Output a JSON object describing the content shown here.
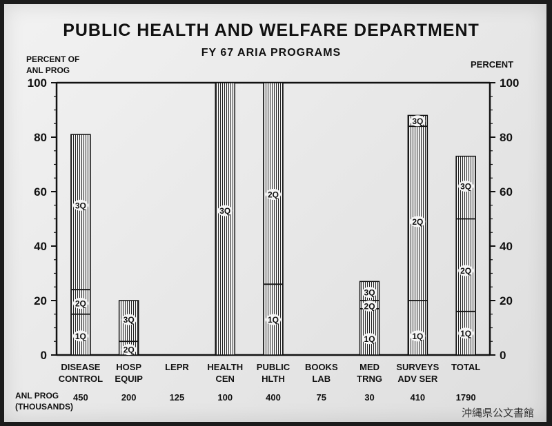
{
  "title": "PUBLIC HEALTH AND WELFARE DEPARTMENT",
  "subtitle": "FY 67 ARIA PROGRAMS",
  "ylabel_left": [
    "PERCENT OF",
    "ANL PROG"
  ],
  "ylabel_right": "PERCENT",
  "footer_label": [
    "ANL PROG",
    "(THOUSANDS)"
  ],
  "archive_mark": "沖縄県公文書館",
  "chart_data": {
    "type": "bar",
    "title": "PUBLIC HEALTH AND WELFARE DEPARTMENT",
    "subtitle": "FY 67 ARIA PROGRAMS",
    "ylim": [
      0,
      100
    ],
    "yticks_left": [
      0,
      20,
      40,
      60,
      80,
      100
    ],
    "yticks_right": [
      0,
      20,
      40,
      60,
      80,
      100
    ],
    "categories": [
      [
        "DISEASE",
        "CONTROL"
      ],
      [
        "HOSP",
        "EQUIP"
      ],
      [
        "LEPR"
      ],
      [
        "HEALTH",
        "CEN"
      ],
      [
        "PUBLIC",
        "HLTH"
      ],
      [
        "BOOKS",
        "LAB"
      ],
      [
        "MED",
        "TRNG"
      ],
      [
        "SURVEYS",
        "ADV SER"
      ],
      [
        "TOTAL"
      ]
    ],
    "anl_prog_thousands": [
      "450",
      "200",
      "125",
      "100",
      "400",
      "75",
      "30",
      "410",
      "1790"
    ],
    "bars": [
      {
        "total": 81,
        "dividers": [
          15,
          24
        ],
        "labels": [
          {
            "t": "1Q",
            "v": 7
          },
          {
            "t": "2Q",
            "v": 19
          },
          {
            "t": "3Q",
            "v": 55
          }
        ]
      },
      {
        "total": 20,
        "dividers": [
          5
        ],
        "labels": [
          {
            "t": "2Q",
            "v": 2
          },
          {
            "t": "3Q",
            "v": 13
          }
        ]
      },
      {
        "total": 0,
        "dividers": [],
        "labels": []
      },
      {
        "total": 100,
        "dividers": [],
        "labels": [
          {
            "t": "3Q",
            "v": 53
          }
        ]
      },
      {
        "total": 100,
        "dividers": [
          26
        ],
        "labels": [
          {
            "t": "1Q",
            "v": 13
          },
          {
            "t": "2Q",
            "v": 59
          }
        ]
      },
      {
        "total": 0,
        "dividers": [],
        "labels": []
      },
      {
        "total": 27,
        "dividers": [
          17,
          20
        ],
        "labels": [
          {
            "t": "1Q",
            "v": 6
          },
          {
            "t": "2Q",
            "v": 18
          },
          {
            "t": "3Q",
            "v": 23
          }
        ]
      },
      {
        "total": 88,
        "dividers": [
          20,
          84
        ],
        "labels": [
          {
            "t": "1Q",
            "v": 7
          },
          {
            "t": "2Q",
            "v": 49
          },
          {
            "t": "3Q",
            "v": 86
          }
        ]
      },
      {
        "total": 73,
        "dividers": [
          16,
          50
        ],
        "labels": [
          {
            "t": "1Q",
            "v": 8
          },
          {
            "t": "2Q",
            "v": 31
          },
          {
            "t": "3Q",
            "v": 62
          }
        ]
      }
    ],
    "grid": false,
    "legend": "none"
  }
}
